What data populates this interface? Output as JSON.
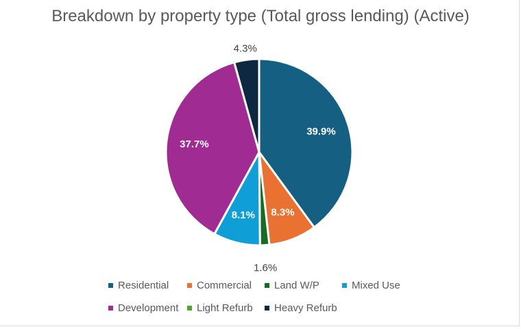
{
  "chart_data": {
    "type": "pie",
    "title": "Breakdown by property type  (Total gross lending) (Active)",
    "slices": [
      {
        "name": "Residential",
        "value": 39.9,
        "label": "39.9%",
        "color": "#156082",
        "label_inside": true
      },
      {
        "name": "Commercial",
        "value": 8.3,
        "label": "8.3%",
        "color": "#E97132",
        "label_inside": true
      },
      {
        "name": "Land W/P",
        "value": 1.6,
        "label": "1.6%",
        "color": "#196B24",
        "label_inside": false
      },
      {
        "name": "Mixed Use",
        "value": 8.1,
        "label": "8.1%",
        "color": "#0F9ED5",
        "label_inside": true
      },
      {
        "name": "Development",
        "value": 37.7,
        "label": "37.7%",
        "color": "#A02B93",
        "label_inside": true
      },
      {
        "name": "Light Refurb",
        "value": 0.0,
        "label": "",
        "color": "#4EA72E",
        "label_inside": false
      },
      {
        "name": "Heavy Refurb",
        "value": 4.3,
        "label": "4.3%",
        "color": "#0E2841",
        "label_inside": false
      }
    ],
    "legend_position": "bottom"
  }
}
